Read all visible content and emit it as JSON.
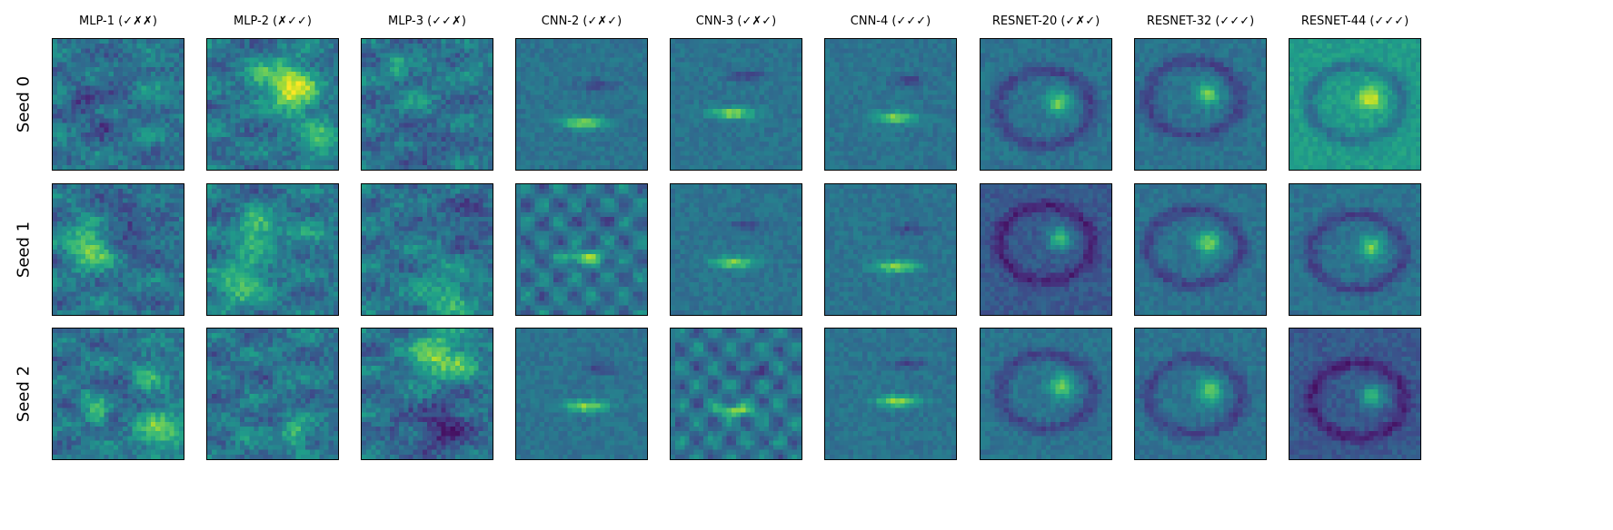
{
  "chart_data": {
    "type": "heatmap",
    "colormap": "viridis",
    "axes_ticks": false,
    "columns": [
      "MLP-1 (✓✗✗)",
      "MLP-2 (✗✓✓)",
      "MLP-3 (✓✓✗)",
      "CNN-2 (✓✗✓)",
      "CNN-3 (✓✗✓)",
      "CNN-4 (✓✓✓)",
      "RESNET-20 (✓✗✓)",
      "RESNET-32 (✓✓✓)",
      "RESNET-44 (✓✓✓)"
    ],
    "rows": [
      "Seed 0",
      "Seed 1",
      "Seed 2"
    ],
    "panel_resolution": [
      28,
      28
    ],
    "panel_pattern": [
      [
        "noisy-blob",
        "noisy-blob",
        "noisy-blob",
        "strokes",
        "strokes",
        "strokes",
        "ring",
        "ring",
        "ring-light"
      ],
      [
        "noisy-blob",
        "noisy-blob",
        "noisy-blob",
        "strokes-bright",
        "strokes",
        "strokes",
        "ring-dark",
        "ring",
        "ring"
      ],
      [
        "noisy-blob",
        "noisy-blob",
        "noisy-blob",
        "strokes",
        "strokes-bright",
        "strokes",
        "ring",
        "ring",
        "ring-dark"
      ]
    ]
  }
}
